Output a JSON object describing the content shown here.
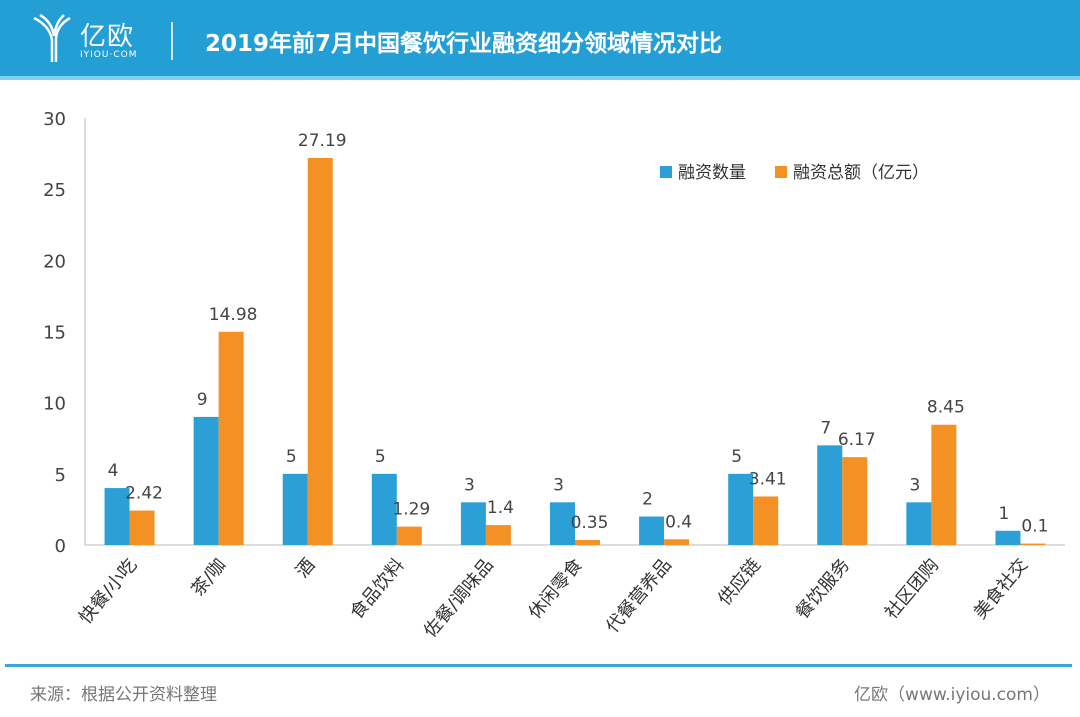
{
  "header": {
    "logo_text": "亿欧",
    "logo_sub": "IYIOU·COM",
    "title": "2019年前7月中国餐饮行业融资细分领域情况对比"
  },
  "chart_data": {
    "type": "bar",
    "title": "2019年前7月中国餐饮行业融资细分领域情况对比",
    "categories": [
      "快餐/小吃",
      "茶/咖",
      "酒",
      "食品饮料",
      "佐餐/调味品",
      "休闲零食",
      "代餐营养品",
      "供应链",
      "餐饮服务",
      "社区团购",
      "美食社交"
    ],
    "series": [
      {
        "name": "融资数量",
        "color": "#2b9fd6",
        "values": [
          4,
          9,
          5,
          5,
          3,
          3,
          2,
          5,
          7,
          3,
          1
        ]
      },
      {
        "name": "融资总额（亿元）",
        "color": "#f39125",
        "values": [
          2.42,
          14.98,
          27.19,
          1.29,
          1.4,
          0.35,
          0.4,
          3.41,
          6.17,
          8.45,
          0.1
        ]
      }
    ],
    "ylim": [
      0,
      30
    ],
    "yticks": [
      0,
      5,
      10,
      15,
      20,
      25,
      30
    ],
    "xlabel": "",
    "ylabel": "",
    "legend": "top-right",
    "grid": false
  },
  "footer": {
    "source": "来源：根据公开资料整理",
    "credit": "亿欧（www.iyiou.com）"
  }
}
